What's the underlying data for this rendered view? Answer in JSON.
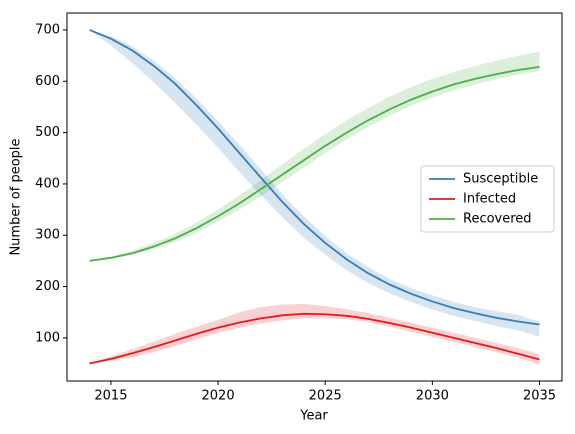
{
  "chart_data": {
    "type": "line",
    "x_label": "Year",
    "y_label": "Number of people",
    "x": [
      2014,
      2015,
      2016,
      2017,
      2018,
      2019,
      2020,
      2021,
      2022,
      2023,
      2024,
      2025,
      2026,
      2027,
      2028,
      2029,
      2030,
      2031,
      2032,
      2033,
      2034,
      2035
    ],
    "series": [
      {
        "name": "Susceptible",
        "color": "#377eb8",
        "values": [
          700,
          683,
          660,
          630,
          595,
          553,
          508,
          460,
          412,
          365,
          322,
          285,
          253,
          226,
          204,
          186,
          171,
          158,
          148,
          139,
          132,
          126
        ],
        "lower": [
          700,
          670,
          635,
          598,
          558,
          515,
          470,
          423,
          378,
          335,
          295,
          262,
          232,
          207,
          187,
          170,
          155,
          143,
          133,
          123,
          115,
          102
        ],
        "upper": [
          700,
          688,
          668,
          640,
          606,
          566,
          522,
          476,
          428,
          380,
          337,
          298,
          265,
          238,
          215,
          197,
          183,
          170,
          160,
          152,
          145,
          131
        ]
      },
      {
        "name": "Infected",
        "color": "#e41a1c",
        "values": [
          50,
          59,
          70,
          82,
          95,
          108,
          120,
          130,
          138,
          144,
          147,
          146,
          143,
          137,
          129,
          120,
          110,
          100,
          90,
          80,
          69,
          58
        ],
        "lower": [
          50,
          55,
          62,
          72,
          84,
          97,
          110,
          120,
          128,
          134,
          138,
          138,
          136,
          131,
          122,
          112,
          102,
          92,
          82,
          72,
          61,
          48
        ],
        "upper": [
          50,
          64,
          78,
          93,
          108,
          122,
          135,
          150,
          160,
          165,
          166,
          162,
          156,
          148,
          139,
          130,
          120,
          110,
          100,
          90,
          80,
          68
        ]
      },
      {
        "name": "Recovered",
        "color": "#4daf4a",
        "values": [
          250,
          256,
          265,
          278,
          294,
          314,
          337,
          362,
          390,
          418,
          446,
          474,
          500,
          524,
          545,
          564,
          580,
          594,
          605,
          614,
          622,
          628
        ],
        "lower": [
          250,
          254,
          262,
          273,
          287,
          305,
          327,
          350,
          376,
          404,
          432,
          460,
          487,
          511,
          533,
          552,
          568,
          582,
          594,
          604,
          613,
          620
        ],
        "upper": [
          250,
          258,
          270,
          285,
          303,
          325,
          350,
          378,
          407,
          438,
          468,
          497,
          524,
          548,
          570,
          589,
          605,
          618,
          630,
          640,
          650,
          658
        ]
      }
    ],
    "xlim": [
      2012.95,
      2036.05
    ],
    "xticks": [
      2015,
      2020,
      2025,
      2030,
      2035
    ],
    "ylim": [
      16,
      733
    ],
    "yticks": [
      100,
      200,
      300,
      400,
      500,
      600,
      700
    ],
    "legend": "center right",
    "band_opacity": 0.2
  }
}
